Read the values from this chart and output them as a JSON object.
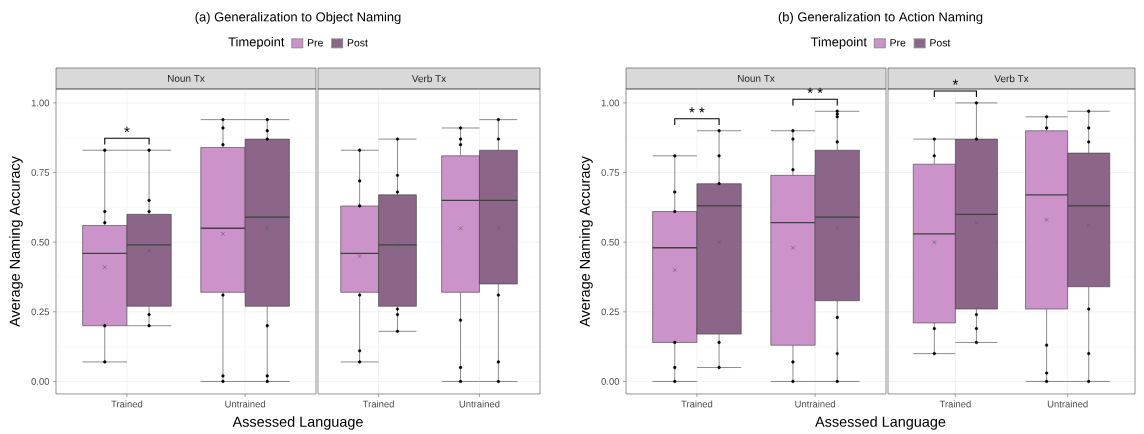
{
  "chart_data": [
    {
      "type": "box",
      "title": "(a) Generalization to Object Naming",
      "legend_title": "Timepoint",
      "legend": "top",
      "subtitle": "Noun Tx",
      "xlabel": "Assessed Language",
      "ylabel": "Average Naming Accuracy",
      "categories": [
        "Trained",
        "Untrained"
      ],
      "ylim": [
        -0.045,
        1.05
      ],
      "yticks": [
        {
          "value": 0,
          "label": "0.00"
        },
        {
          "value": 0.25,
          "label": "0.25"
        },
        {
          "value": 0.5,
          "label": "0.50"
        },
        {
          "value": 0.75,
          "label": "0.75"
        },
        {
          "value": 1,
          "label": "1.00"
        }
      ],
      "grid": true,
      "series": [
        {
          "name": "Pre",
          "color": "#cc93ca",
          "boxes": [
            {
              "low": 0.07,
              "q1": 0.2,
              "median": 0.46,
              "q3": 0.56,
              "high": 0.83,
              "mean": 0.41
            },
            {
              "low": 0,
              "q1": 0.32,
              "median": 0.55,
              "q3": 0.84,
              "high": 0.94,
              "mean": 0.53
            }
          ]
        },
        {
          "type": "scatter",
          "color": "#000000",
          "x": [
            "Trained",
            "Trained",
            "Trained",
            "Trained",
            "Trained",
            "Untrained",
            "Untrained",
            "Untrained",
            "Untrained",
            "Untrained",
            "Untrained"
          ],
          "values": [
            0.83,
            0.61,
            0.57,
            0.2,
            0.07,
            0.94,
            0.91,
            0.85,
            0.31,
            0.02,
            0
          ]
        },
        {
          "name": "Post",
          "color": "#8b6688",
          "boxes": [
            {
              "low": 0.2,
              "q1": 0.27,
              "median": 0.49,
              "q3": 0.6,
              "high": 0.83,
              "mean": 0.47
            },
            {
              "low": 0,
              "q1": 0.27,
              "median": 0.59,
              "q3": 0.87,
              "high": 0.94,
              "mean": 0.55
            }
          ]
        },
        {
          "type": "scatter",
          "color": "#000000",
          "x": [
            "Trained",
            "Trained",
            "Trained",
            "Trained",
            "Trained",
            "Untrained",
            "Untrained",
            "Untrained",
            "Untrained",
            "Untrained",
            "Untrained"
          ],
          "values": [
            0.83,
            0.65,
            0.61,
            0.24,
            0.2,
            0.94,
            0.9,
            0.87,
            0.2,
            0.02,
            0
          ]
        }
      ],
      "annotations": [
        "*"
      ]
    },
    {
      "type": "box",
      "subtitle": "Verb Tx",
      "categories": [
        "Trained",
        "Untrained"
      ],
      "ylim": [
        -0.045,
        1.05
      ],
      "yticks": [
        0,
        0.25,
        0.5,
        0.75,
        1
      ],
      "grid": true,
      "tick_labels": "x",
      "series": [
        {
          "color": "#cc93ca",
          "boxes": [
            {
              "low": 0.07,
              "q1": 0.32,
              "median": 0.46,
              "q3": 0.63,
              "high": 0.83,
              "mean": 0.45
            },
            {
              "low": 0,
              "q1": 0.32,
              "median": 0.65,
              "q3": 0.81,
              "high": 0.91,
              "mean": 0.55
            }
          ]
        },
        {
          "type": "scatter",
          "color": "#000000",
          "x": [
            "Trained",
            "Trained",
            "Trained",
            "Trained",
            "Trained",
            "Trained",
            "Untrained",
            "Untrained",
            "Untrained",
            "Untrained",
            "Untrained",
            "Untrained"
          ],
          "values": [
            0.83,
            0.72,
            0.63,
            0.31,
            0.11,
            0.07,
            0.91,
            0.87,
            0.85,
            0.22,
            0.05,
            0
          ]
        },
        {
          "color": "#8b6688",
          "boxes": [
            {
              "low": 0.18,
              "q1": 0.27,
              "median": 0.49,
              "q3": 0.67,
              "high": 0.87,
              "mean": 0.49
            },
            {
              "low": 0,
              "q1": 0.35,
              "median": 0.65,
              "q3": 0.83,
              "high": 0.94,
              "mean": 0.55
            }
          ]
        },
        {
          "type": "scatter",
          "color": "#000000",
          "x": [
            "Trained",
            "Trained",
            "Trained",
            "Trained",
            "Trained",
            "Trained",
            "Untrained",
            "Untrained",
            "Untrained",
            "Untrained",
            "Untrained"
          ],
          "values": [
            0.87,
            0.74,
            0.68,
            0.26,
            0.24,
            0.18,
            0.94,
            0.87,
            0.31,
            0.07,
            0
          ]
        }
      ]
    },
    {
      "type": "box",
      "title": "(b) Generalization to Action Naming",
      "legend_title": "Timepoint",
      "legend": "top",
      "subtitle": "Noun Tx",
      "xlabel": "Assessed Language",
      "ylabel": "Average Naming Accuracy",
      "categories": [
        "Trained",
        "Untrained"
      ],
      "ylim": [
        -0.045,
        1.05
      ],
      "yticks": [
        {
          "value": 0,
          "label": "0.00"
        },
        {
          "value": 0.25,
          "label": "0.25"
        },
        {
          "value": 0.5,
          "label": "0.50"
        },
        {
          "value": 0.75,
          "label": "0.75"
        },
        {
          "value": 1,
          "label": "1.00"
        }
      ],
      "grid": true,
      "series": [
        {
          "name": "Pre",
          "color": "#cc93ca",
          "boxes": [
            {
              "low": 0,
              "q1": 0.14,
              "median": 0.48,
              "q3": 0.61,
              "high": 0.81,
              "mean": 0.4
            },
            {
              "low": 0,
              "q1": 0.13,
              "median": 0.57,
              "q3": 0.74,
              "high": 0.9,
              "mean": 0.48
            }
          ]
        },
        {
          "type": "scatter",
          "color": "#000000",
          "x": [
            "Trained",
            "Trained",
            "Trained",
            "Trained",
            "Trained",
            "Trained",
            "Untrained",
            "Untrained",
            "Untrained",
            "Untrained",
            "Untrained"
          ],
          "values": [
            0.81,
            0.68,
            0.61,
            0.14,
            0.05,
            0,
            0.9,
            0.87,
            0.76,
            0.07,
            0
          ]
        },
        {
          "name": "Post",
          "color": "#8b6688",
          "boxes": [
            {
              "low": 0.05,
              "q1": 0.17,
              "median": 0.63,
              "q3": 0.71,
              "high": 0.9,
              "mean": 0.5
            },
            {
              "low": 0,
              "q1": 0.29,
              "median": 0.59,
              "q3": 0.83,
              "high": 0.97,
              "mean": 0.55
            }
          ]
        },
        {
          "type": "scatter",
          "color": "#000000",
          "x": [
            "Trained",
            "Trained",
            "Trained",
            "Trained",
            "Trained",
            "Untrained",
            "Untrained",
            "Untrained",
            "Untrained",
            "Untrained",
            "Untrained",
            "Untrained"
          ],
          "values": [
            0.9,
            0.81,
            0.71,
            0.14,
            0.05,
            0.97,
            0.96,
            0.95,
            0.86,
            0.23,
            0.1,
            0
          ]
        }
      ],
      "annotations": [
        "* *",
        "* *"
      ]
    },
    {
      "type": "box",
      "subtitle": "Verb Tx",
      "categories": [
        "Trained",
        "Untrained"
      ],
      "ylim": [
        -0.045,
        1.05
      ],
      "yticks": [
        0,
        0.25,
        0.5,
        0.75,
        1
      ],
      "grid": true,
      "tick_labels": "x",
      "series": [
        {
          "color": "#cc93ca",
          "boxes": [
            {
              "low": 0.1,
              "q1": 0.21,
              "median": 0.53,
              "q3": 0.78,
              "high": 0.87,
              "mean": 0.5
            },
            {
              "low": 0,
              "q1": 0.26,
              "median": 0.67,
              "q3": 0.9,
              "high": 0.95,
              "mean": 0.58
            }
          ]
        },
        {
          "type": "scatter",
          "color": "#000000",
          "x": [
            "Trained",
            "Trained",
            "Trained",
            "Trained",
            "Untrained",
            "Untrained",
            "Untrained",
            "Untrained",
            "Untrained"
          ],
          "values": [
            0.87,
            0.81,
            0.19,
            0.1,
            0.95,
            0.91,
            0.13,
            0.03,
            0
          ]
        },
        {
          "color": "#8b6688",
          "boxes": [
            {
              "low": 0.14,
              "q1": 0.26,
              "median": 0.6,
              "q3": 0.87,
              "high": 1.0,
              "mean": 0.57
            },
            {
              "low": 0,
              "q1": 0.34,
              "median": 0.63,
              "q3": 0.82,
              "high": 0.97,
              "mean": 0.56
            }
          ]
        },
        {
          "type": "scatter",
          "color": "#000000",
          "x": [
            "Trained",
            "Trained",
            "Trained",
            "Trained",
            "Trained",
            "Untrained",
            "Untrained",
            "Untrained",
            "Untrained",
            "Untrained",
            "Untrained"
          ],
          "values": [
            1.0,
            0.87,
            0.24,
            0.19,
            0.14,
            0.97,
            0.91,
            0.86,
            0.26,
            0.1,
            0
          ]
        }
      ],
      "annotations": [
        "*"
      ]
    }
  ]
}
